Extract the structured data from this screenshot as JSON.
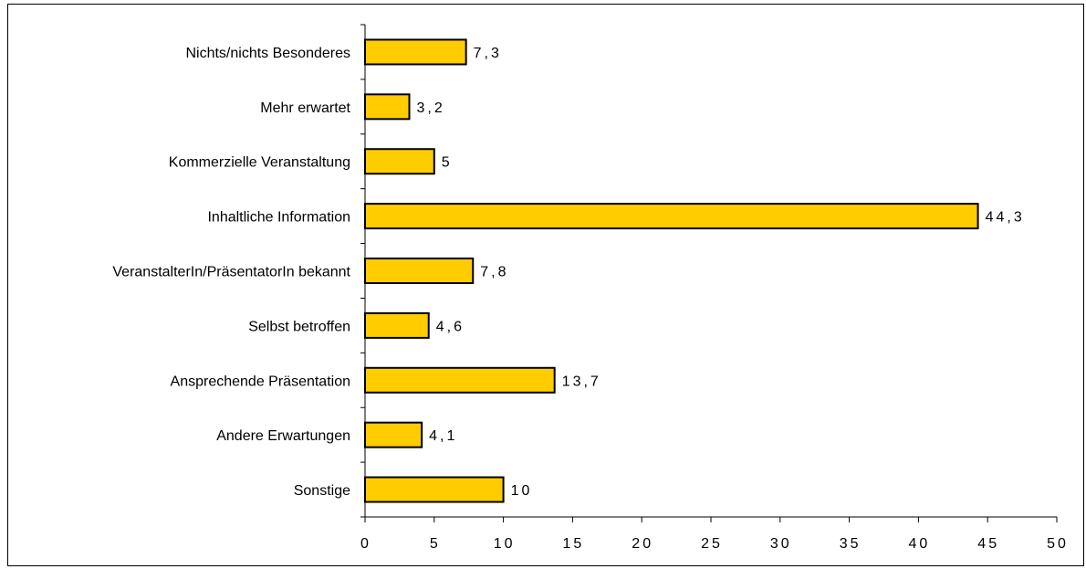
{
  "chart_data": {
    "type": "bar",
    "orientation": "horizontal",
    "title": "",
    "xlabel": "",
    "ylabel": "",
    "categories": [
      "Nichts/nichts  Besonderes",
      "Mehr  erwartet",
      "Kommerzielle  Veranstaltung",
      "Inhaltliche  Information",
      "VeranstalterIn/PräsentatorIn  bekannt",
      "Selbst  betroffen",
      "Ansprechende  Präsentation",
      "Andere  Erwartungen",
      "Sonstige"
    ],
    "values": [
      7.3,
      3.2,
      5,
      44.3,
      7.8,
      4.6,
      13.7,
      4.1,
      10
    ],
    "value_labels": [
      "7,3",
      "3,2",
      "5",
      "44,3",
      "7,8",
      "4,6",
      "13,7",
      "4,1",
      "10"
    ],
    "xlim": [
      0,
      50
    ],
    "x_ticks": [
      0,
      5,
      10,
      15,
      20,
      25,
      30,
      35,
      40,
      45,
      50
    ],
    "x_tick_labels": [
      "0",
      "5",
      "10",
      "15",
      "20",
      "25",
      "30",
      "35",
      "40",
      "45",
      "50"
    ],
    "grid": false,
    "legend": false,
    "colors": {
      "bar_fill": "#FFCC00",
      "bar_stroke": "#000000",
      "axis": "#000000"
    }
  }
}
